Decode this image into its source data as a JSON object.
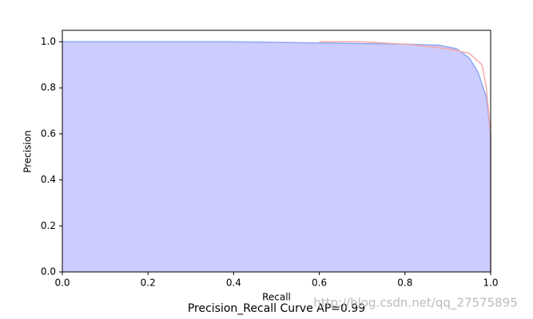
{
  "chart_data": {
    "type": "line",
    "title": "Precision_Recall Curve AP=0.99",
    "xlabel": "Recall",
    "ylabel": "Precision",
    "watermark": "http://blog.csdn.net/qq_27575895",
    "xlim": [
      0,
      1
    ],
    "ylim": [
      0,
      1.05
    ],
    "xticks": [
      {
        "value": 0,
        "label": "0.0"
      },
      {
        "value": 0.2,
        "label": "0.2"
      },
      {
        "value": 0.4,
        "label": "0.4"
      },
      {
        "value": 0.6,
        "label": "0.6"
      },
      {
        "value": 0.8,
        "label": "0.8"
      },
      {
        "value": 1,
        "label": "1.0"
      }
    ],
    "yticks": [
      {
        "value": 0,
        "label": "0.0"
      },
      {
        "value": 0.2,
        "label": "0.2"
      },
      {
        "value": 0.4,
        "label": "0.4"
      },
      {
        "value": 0.6,
        "label": "0.6"
      },
      {
        "value": 0.8,
        "label": "0.8"
      },
      {
        "value": 1,
        "label": "1.0"
      }
    ],
    "series": [
      {
        "color": "#8fa8f0",
        "fill": "#ccccff",
        "x": [
          0,
          0.4,
          0.6,
          0.8,
          0.88,
          0.92,
          0.95,
          0.97,
          0.99,
          1.0,
          1.0
        ],
        "values": [
          1.0,
          1.0,
          0.995,
          0.99,
          0.985,
          0.97,
          0.93,
          0.87,
          0.76,
          0.6,
          0.0
        ]
      },
      {
        "color": "#f4aaaa",
        "x": [
          0.6,
          0.7,
          0.8,
          0.9,
          0.95,
          0.98,
          0.99,
          1.0,
          1.0
        ],
        "values": [
          1.0,
          1.0,
          0.99,
          0.97,
          0.95,
          0.9,
          0.8,
          0.6,
          0.0
        ]
      }
    ]
  }
}
